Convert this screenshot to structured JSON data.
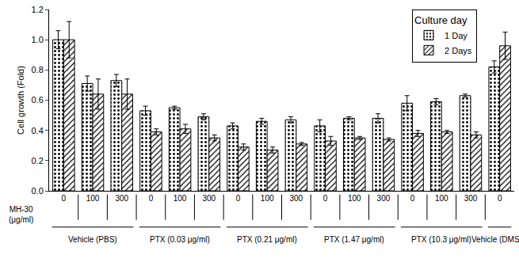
{
  "chart_data": {
    "type": "bar",
    "y_label": "Cell growth (Fold)",
    "x_label_lines": [
      "MH-30",
      "(μg/ml)"
    ],
    "categories": [
      "0",
      "100",
      "300",
      "0",
      "100",
      "300",
      "0",
      "100",
      "300",
      "0",
      "100",
      "300",
      "0",
      "100",
      "300",
      "0"
    ],
    "category_groups": [
      "Vehicle (PBS)",
      "Vehicle (PBS)",
      "Vehicle (PBS)",
      "PTX (0.03 μg/ml)",
      "PTX (0.03 μg/ml)",
      "PTX (0.03 μg/ml)",
      "PTX (0.21 μg/ml)",
      "PTX (0.21 μg/ml)",
      "PTX (0.21 μg/ml)",
      "PTX (1.47 μg/ml)",
      "PTX (1.47 μg/ml)",
      "PTX (1.47 μg/ml)",
      "PTX (10.3 μg/ml)",
      "PTX (10.3 μg/ml)",
      "PTX (10.3 μg/ml)",
      "Vehicle (DMSO)"
    ],
    "legend_title": "Culture day",
    "legend": "top right",
    "grid": false,
    "ylim": [
      0,
      1.2
    ],
    "yticks": [
      {
        "value": 0,
        "label": "0.0"
      },
      0.2,
      0.4,
      0.6,
      0.8,
      {
        "value": 1,
        "label": "1.0"
      },
      1.2
    ],
    "series": [
      {
        "name": "1 Day",
        "color": "#000000",
        "marker": "dots",
        "values": [
          1.0,
          0.71,
          0.73,
          0.53,
          0.55,
          0.49,
          0.43,
          0.46,
          0.47,
          0.43,
          0.48,
          0.48,
          0.58,
          0.59,
          0.63,
          0.82
        ],
        "errors": [
          0.06,
          0.05,
          0.04,
          0.03,
          0.01,
          0.02,
          0.02,
          0.02,
          0.02,
          0.04,
          0.01,
          0.03,
          0.05,
          0.02,
          0.01,
          0.04
        ]
      },
      {
        "name": "2 Days",
        "color": "#000000",
        "marker": "hatch",
        "values": [
          1.0,
          0.64,
          0.64,
          0.39,
          0.41,
          0.35,
          0.29,
          0.27,
          0.31,
          0.33,
          0.35,
          0.34,
          0.38,
          0.39,
          0.37,
          0.96
        ],
        "errors": [
          0.12,
          0.1,
          0.1,
          0.02,
          0.03,
          0.02,
          0.02,
          0.02,
          0.01,
          0.03,
          0.01,
          0.01,
          0.02,
          0.01,
          0.02,
          0.09
        ]
      }
    ]
  }
}
